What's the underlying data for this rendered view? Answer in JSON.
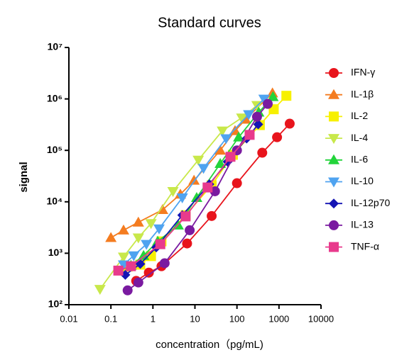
{
  "chart_data": {
    "type": "line",
    "title": "Standard curves",
    "x_label": "concentration（pg/mL)",
    "y_label": "signal",
    "x_log": true,
    "y_log": true,
    "xlim": [
      0.01,
      10000
    ],
    "ylim": [
      100,
      10000000
    ],
    "xticks": [
      0.01,
      0.1,
      1,
      10,
      100,
      1000,
      10000
    ],
    "yticks": [
      {
        "value": 100,
        "label": "10²"
      },
      {
        "value": 1000,
        "label": "10³"
      },
      {
        "value": 10000,
        "label": "10⁴"
      },
      {
        "value": 100000,
        "label": "10⁵"
      },
      {
        "value": 1000000,
        "label": "10⁶"
      },
      {
        "value": 10000000,
        "label": "10⁷"
      }
    ],
    "legend": "right",
    "series": [
      {
        "name": "IFN-γ",
        "color": "#e8141c",
        "marker": "circle",
        "x": [
          0.4,
          0.8,
          1.6,
          6.5,
          25,
          100,
          400,
          900,
          1800
        ],
        "values": [
          290,
          420,
          560,
          1550,
          5300,
          23000,
          90000,
          180000,
          330000
        ]
      },
      {
        "name": "IL-1β",
        "color": "#f47c20",
        "marker": "triangle-up",
        "x": [
          0.1,
          0.2,
          0.45,
          1.7,
          4.5,
          9.5,
          40,
          90,
          160,
          700
        ],
        "values": [
          2000,
          2800,
          4000,
          7000,
          14000,
          26000,
          100000,
          240000,
          400000,
          1300000
        ]
      },
      {
        "name": "IL-2",
        "color": "#f7f000",
        "marker": "square",
        "x": [
          0.25,
          0.5,
          0.9,
          1.6,
          6,
          25,
          80,
          350,
          750,
          1500
        ],
        "values": [
          550,
          600,
          880,
          1700,
          5500,
          21000,
          82000,
          310000,
          630000,
          1150000
        ]
      },
      {
        "name": "IL-4",
        "color": "#c8e84a",
        "marker": "triangle-down",
        "x": [
          0.055,
          0.2,
          0.45,
          0.9,
          3,
          12,
          45,
          130,
          300
        ],
        "values": [
          200,
          850,
          2000,
          3800,
          16000,
          65000,
          240000,
          430000,
          750000
        ]
      },
      {
        "name": "IL-6",
        "color": "#22d43a",
        "marker": "triangle-up",
        "x": [
          0.3,
          0.6,
          1.3,
          4,
          11,
          40,
          110,
          330,
          720
        ],
        "values": [
          580,
          900,
          1700,
          3500,
          12000,
          55000,
          180000,
          550000,
          1100000
        ]
      },
      {
        "name": "IL-10",
        "color": "#4fa3f0",
        "marker": "triangle-down",
        "x": [
          0.2,
          0.35,
          0.7,
          1.4,
          5,
          16,
          55,
          190,
          440
        ],
        "values": [
          600,
          900,
          1500,
          3000,
          12000,
          45000,
          170000,
          500000,
          1000000
        ]
      },
      {
        "name": "IL-12p70",
        "color": "#1414b4",
        "marker": "diamond",
        "x": [
          0.22,
          0.5,
          1.2,
          5,
          22,
          60,
          170,
          320
        ],
        "values": [
          380,
          620,
          1300,
          5500,
          22000,
          60000,
          170000,
          320000
        ]
      },
      {
        "name": "IL-13",
        "color": "#7a1aa0",
        "marker": "circle",
        "x": [
          0.25,
          0.45,
          1.9,
          7.5,
          30,
          100,
          300,
          540
        ],
        "values": [
          190,
          270,
          640,
          2800,
          16000,
          100000,
          450000,
          800000
        ]
      },
      {
        "name": "TNF-α",
        "color": "#e83a8c",
        "marker": "square",
        "x": [
          0.15,
          0.3,
          1.5,
          6,
          20,
          70,
          200
        ],
        "values": [
          460,
          560,
          1500,
          5200,
          19000,
          75000,
          200000
        ]
      }
    ]
  }
}
